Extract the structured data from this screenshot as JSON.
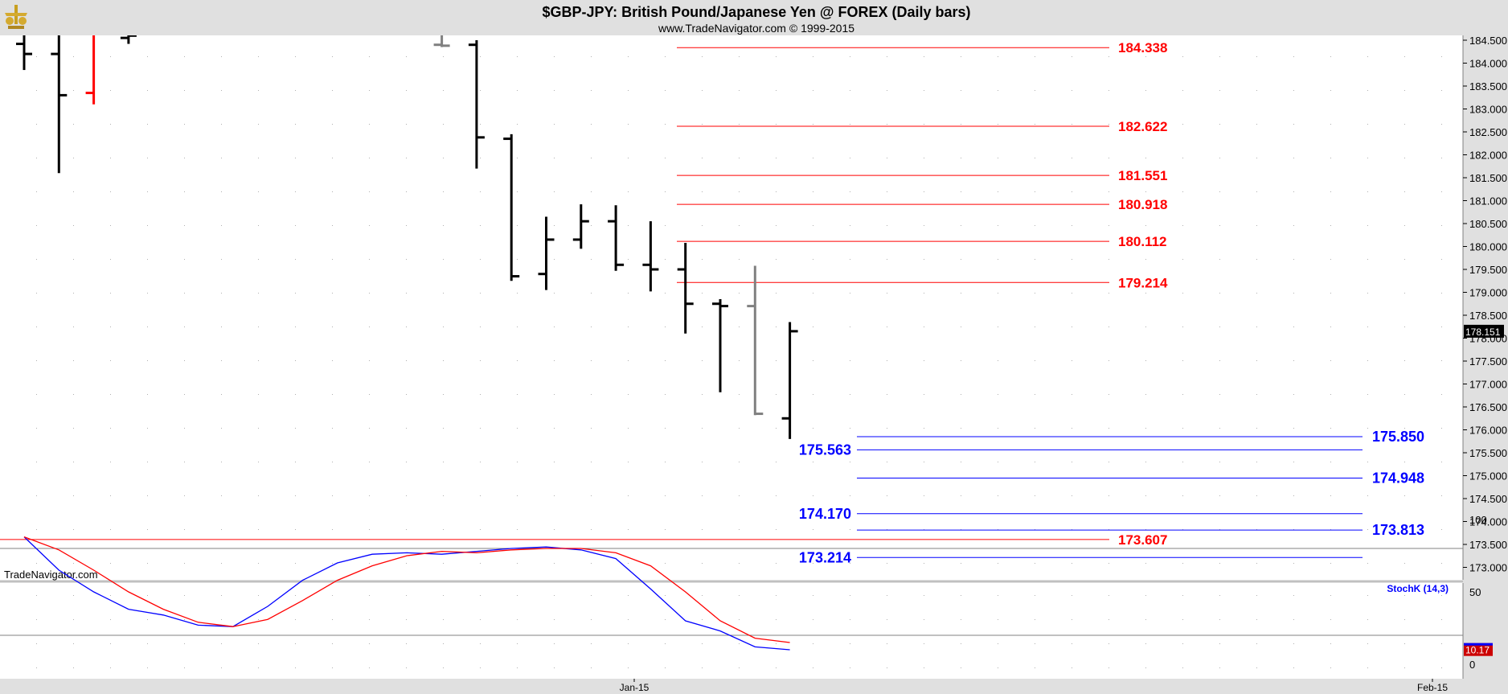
{
  "header": {
    "title": "$GBP-JPY:  British Pound/Japanese Yen @ FOREX  (Daily bars)",
    "subtitle": "www.TradeNavigator.com © 1999-2015"
  },
  "watermark": "TradeNavigator.com",
  "colors": {
    "background": "#ffffff",
    "frame": "#e0e0e0",
    "bar": "#000000",
    "red": "#ff0000",
    "blue": "#0000ff",
    "gray": "#808080",
    "price_tag": "#000000",
    "stoch_tag": "#cc0000"
  },
  "chart_data": [
    {
      "type": "ohlc",
      "ylim": [
        172.5,
        184.75
      ],
      "y_ticks": [
        "184.500",
        "184.000",
        "183.500",
        "183.000",
        "182.500",
        "182.000",
        "181.500",
        "181.000",
        "180.500",
        "180.000",
        "179.500",
        "179.000",
        "178.500",
        "178.000",
        "177.500",
        "177.000",
        "176.500",
        "176.000",
        "175.500",
        "175.000",
        "174.500",
        "174.000",
        "173.500",
        "173.000"
      ],
      "x_labels": [
        "Jan-15",
        "Feb-15"
      ],
      "last_price": "178.151",
      "bars": [
        {
          "x": 0,
          "o": 184.42,
          "h": 184.75,
          "l": 183.85,
          "c": 184.2,
          "color": "black"
        },
        {
          "x": 1,
          "o": 184.2,
          "h": 184.75,
          "l": 181.6,
          "c": 183.3,
          "color": "black"
        },
        {
          "x": 2,
          "o": 183.35,
          "h": 184.75,
          "l": 183.1,
          "c": 184.75,
          "color": "red"
        },
        {
          "x": 3,
          "o": 184.55,
          "h": 184.75,
          "l": 184.42,
          "c": 184.6,
          "color": "black"
        },
        {
          "x": 12,
          "o": 184.4,
          "h": 184.75,
          "l": 184.35,
          "c": 184.38,
          "color": "gray"
        },
        {
          "x": 13,
          "o": 184.4,
          "h": 184.5,
          "l": 181.7,
          "c": 182.38,
          "color": "black"
        },
        {
          "x": 14,
          "o": 182.35,
          "h": 182.45,
          "l": 179.25,
          "c": 179.35,
          "color": "black"
        },
        {
          "x": 15,
          "o": 179.4,
          "h": 180.65,
          "l": 179.05,
          "c": 180.15,
          "color": "black"
        },
        {
          "x": 16,
          "o": 180.15,
          "h": 180.92,
          "l": 179.95,
          "c": 180.55,
          "color": "black"
        },
        {
          "x": 17,
          "o": 180.55,
          "h": 180.9,
          "l": 179.47,
          "c": 179.6,
          "color": "black"
        },
        {
          "x": 18,
          "o": 179.6,
          "h": 180.55,
          "l": 179.02,
          "c": 179.5,
          "color": "black"
        },
        {
          "x": 19,
          "o": 179.5,
          "h": 180.08,
          "l": 178.1,
          "c": 178.75,
          "color": "black"
        },
        {
          "x": 20,
          "o": 178.75,
          "h": 178.85,
          "l": 176.82,
          "c": 178.7,
          "color": "black"
        },
        {
          "x": 21,
          "o": 178.7,
          "h": 179.58,
          "l": 176.32,
          "c": 176.35,
          "color": "gray"
        },
        {
          "x": 22,
          "o": 176.25,
          "h": 178.35,
          "l": 175.8,
          "c": 178.151,
          "color": "black"
        }
      ],
      "red_levels": [
        {
          "value": 184.338,
          "label": "184.338"
        },
        {
          "value": 182.622,
          "label": "182.622"
        },
        {
          "value": 181.551,
          "label": "181.551"
        },
        {
          "value": 180.918,
          "label": "180.918"
        },
        {
          "value": 180.112,
          "label": "180.112"
        },
        {
          "value": 179.214,
          "label": "179.214"
        },
        {
          "value": 173.607,
          "label": "173.607"
        }
      ],
      "blue_levels": [
        {
          "value": 175.85,
          "label": "175.850",
          "label_side": "right"
        },
        {
          "value": 175.563,
          "label": "175.563",
          "label_side": "left"
        },
        {
          "value": 174.948,
          "label": "174.948",
          "label_side": "right"
        },
        {
          "value": 174.17,
          "label": "174.170",
          "label_side": "left"
        },
        {
          "value": 173.813,
          "label": "173.813",
          "label_side": "right"
        },
        {
          "value": 173.214,
          "label": "173.214",
          "label_side": "left"
        }
      ]
    },
    {
      "type": "line",
      "name": "StochK (14,3)",
      "ylim": [
        0,
        100
      ],
      "y_ticks": [
        "100",
        "50",
        "0"
      ],
      "bands": [
        80,
        20
      ],
      "last_value": "10.17",
      "x": [
        0,
        1,
        2,
        3,
        4,
        5,
        6,
        7,
        8,
        9,
        10,
        11,
        12,
        13,
        14,
        15,
        16,
        17,
        18,
        19,
        20,
        21,
        22
      ],
      "series": [
        {
          "color": "blue",
          "values": [
            88,
            65,
            50,
            38,
            34,
            27,
            26,
            40,
            58,
            70,
            76,
            77,
            76,
            78,
            80,
            81,
            79,
            73,
            52,
            30,
            23,
            12,
            10
          ]
        },
        {
          "color": "red",
          "values": [
            88,
            79,
            65,
            50,
            38,
            29,
            26,
            31,
            44,
            58,
            68,
            75,
            78,
            77,
            79,
            80,
            80,
            77,
            68,
            50,
            30,
            18,
            15
          ]
        }
      ]
    }
  ]
}
